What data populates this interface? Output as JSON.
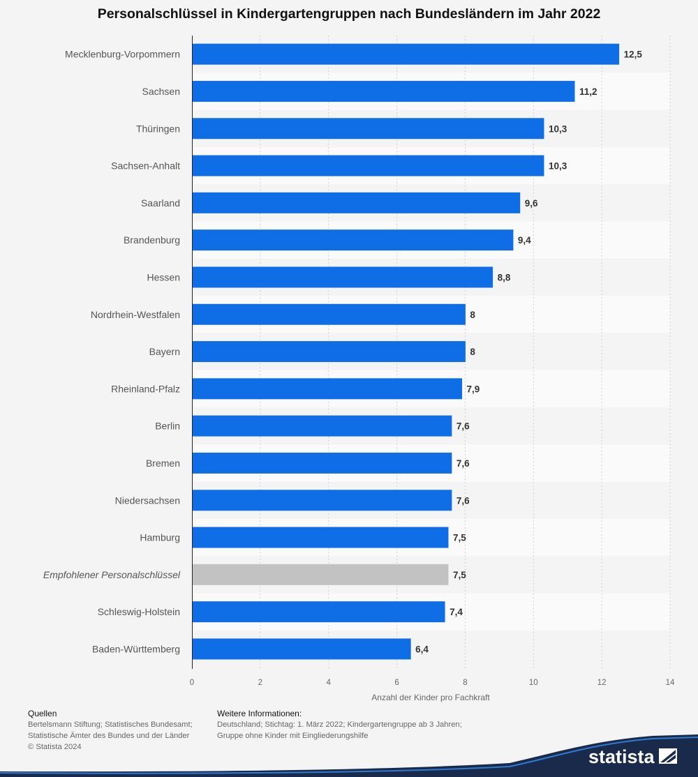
{
  "title": "Personalschlüssel in Kindergartengruppen nach Bundesländern im Jahr 2022",
  "chart_data": {
    "type": "bar",
    "orientation": "horizontal",
    "title": "Personalschlüssel in Kindergartengruppen nach Bundesländern im Jahr 2022",
    "xlabel": "Anzahl der Kinder pro Fachkraft",
    "ylabel": "",
    "xlim": [
      0,
      14
    ],
    "ticks": [
      0,
      2,
      4,
      6,
      8,
      10,
      12,
      14
    ],
    "categories": [
      "Mecklenburg-Vorpommern",
      "Sachsen",
      "Thüringen",
      "Sachsen-Anhalt",
      "Saarland",
      "Brandenburg",
      "Hessen",
      "Nordrhein-Westfalen",
      "Bayern",
      "Rheinland-Pfalz",
      "Berlin",
      "Bremen",
      "Niedersachsen",
      "Hamburg",
      "Empfohlener Personalschlüssel",
      "Schleswig-Holstein",
      "Baden-Württemberg"
    ],
    "values": [
      12.5,
      11.2,
      10.3,
      10.3,
      9.6,
      9.4,
      8.8,
      8,
      8,
      7.9,
      7.6,
      7.6,
      7.6,
      7.5,
      7.5,
      7.4,
      6.4
    ],
    "value_labels": [
      "12,5",
      "11,2",
      "10,3",
      "10,3",
      "9,6",
      "9,4",
      "8,8",
      "8",
      "8",
      "7,9",
      "7,6",
      "7,6",
      "7,6",
      "7,5",
      "7,5",
      "7,4",
      "6,4"
    ],
    "highlight_category": "Empfohlener Personalschlüssel",
    "bar_color": "#0f6ee6",
    "highlight_color": "#c2c2c2",
    "grid": true
  },
  "footer": {
    "sources_heading": "Quellen",
    "sources_line1": "Bertelsmann Stiftung; Statistisches Bundesamt;",
    "sources_line2": "Statistische Ämter des Bundes und der Länder",
    "copyright": "© Statista 2024",
    "info_heading": "Weitere Informationen:",
    "info_line1": "Deutschland; Stichtag: 1. März 2022; Kindergartengruppe ab 3 Jahren;",
    "info_line2": "Gruppe ohne Kinder mit Eingliederungshilfe"
  },
  "brand": {
    "name": "statista",
    "color": "#1a2a4a"
  }
}
